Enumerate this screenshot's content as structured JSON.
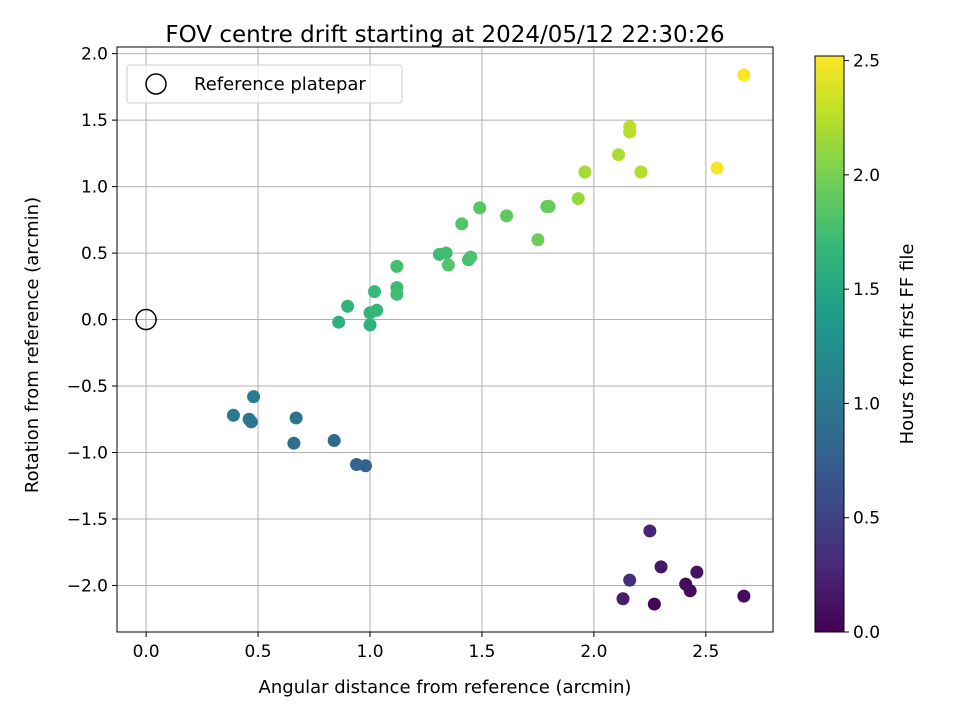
{
  "chart_data": {
    "type": "scatter",
    "title": "FOV centre drift starting at 2024/05/12 22:30:26",
    "xlabel": "Angular distance from reference (arcmin)",
    "ylabel": "Rotation from reference (arcmin)",
    "xlim": [
      -0.13,
      2.8
    ],
    "ylim": [
      -2.35,
      2.05
    ],
    "x_ticks": [
      0.0,
      0.5,
      1.0,
      1.5,
      2.0,
      2.5
    ],
    "x_tick_labels": [
      "0.0",
      "0.5",
      "1.0",
      "1.5",
      "2.0",
      "2.5"
    ],
    "y_ticks": [
      -2.0,
      -1.5,
      -1.0,
      -0.5,
      0.0,
      0.5,
      1.0,
      1.5,
      2.0
    ],
    "y_tick_labels": [
      "−2.0",
      "−1.5",
      "−1.0",
      "−0.5",
      "0.0",
      "0.5",
      "1.0",
      "1.5",
      "2.0"
    ],
    "grid": true,
    "legend": {
      "placement": "upper-left",
      "label": "Reference platepar"
    },
    "reference_point": {
      "x": 0.0,
      "y": 0.0
    },
    "colorbar": {
      "label": "Hours from first FF file",
      "range": [
        0.0,
        2.52
      ],
      "colormap": "viridis",
      "ticks": [
        0.0,
        0.5,
        1.0,
        1.5,
        2.0,
        2.5
      ],
      "tick_labels": [
        "0.0",
        "0.5",
        "1.0",
        "1.5",
        "2.0",
        "2.5"
      ]
    },
    "points": [
      {
        "x": 2.27,
        "y": -2.14,
        "c": 0.02
      },
      {
        "x": 2.43,
        "y": -2.04,
        "c": 0.05
      },
      {
        "x": 2.41,
        "y": -1.99,
        "c": 0.07
      },
      {
        "x": 2.67,
        "y": -2.08,
        "c": 0.08
      },
      {
        "x": 2.46,
        "y": -1.9,
        "c": 0.12
      },
      {
        "x": 2.3,
        "y": -1.86,
        "c": 0.15
      },
      {
        "x": 2.13,
        "y": -2.1,
        "c": 0.2
      },
      {
        "x": 2.25,
        "y": -1.59,
        "c": 0.25
      },
      {
        "x": 2.16,
        "y": -1.96,
        "c": 0.35
      },
      {
        "x": 0.98,
        "y": -1.1,
        "c": 0.78
      },
      {
        "x": 0.94,
        "y": -1.09,
        "c": 0.8
      },
      {
        "x": 0.84,
        "y": -0.91,
        "c": 0.85
      },
      {
        "x": 0.66,
        "y": -0.93,
        "c": 0.88
      },
      {
        "x": 0.67,
        "y": -0.74,
        "c": 0.95
      },
      {
        "x": 0.46,
        "y": -0.75,
        "c": 0.98
      },
      {
        "x": 0.47,
        "y": -0.77,
        "c": 1.0
      },
      {
        "x": 0.39,
        "y": -0.72,
        "c": 1.02
      },
      {
        "x": 0.48,
        "y": -0.58,
        "c": 1.05
      },
      {
        "x": 0.86,
        "y": -0.02,
        "c": 1.6
      },
      {
        "x": 1.0,
        "y": -0.04,
        "c": 1.62
      },
      {
        "x": 0.9,
        "y": 0.1,
        "c": 1.65
      },
      {
        "x": 1.0,
        "y": 0.05,
        "c": 1.66
      },
      {
        "x": 1.03,
        "y": 0.07,
        "c": 1.68
      },
      {
        "x": 1.02,
        "y": 0.21,
        "c": 1.7
      },
      {
        "x": 1.12,
        "y": 0.24,
        "c": 1.72
      },
      {
        "x": 1.12,
        "y": 0.19,
        "c": 1.74
      },
      {
        "x": 1.12,
        "y": 0.4,
        "c": 1.76
      },
      {
        "x": 1.31,
        "y": 0.49,
        "c": 1.72
      },
      {
        "x": 1.34,
        "y": 0.5,
        "c": 1.74
      },
      {
        "x": 1.35,
        "y": 0.41,
        "c": 1.82
      },
      {
        "x": 1.44,
        "y": 0.45,
        "c": 1.77
      },
      {
        "x": 1.45,
        "y": 0.47,
        "c": 1.8
      },
      {
        "x": 1.41,
        "y": 0.72,
        "c": 1.82
      },
      {
        "x": 1.49,
        "y": 0.84,
        "c": 1.85
      },
      {
        "x": 1.61,
        "y": 0.78,
        "c": 1.88
      },
      {
        "x": 1.79,
        "y": 0.85,
        "c": 1.9
      },
      {
        "x": 1.8,
        "y": 0.85,
        "c": 1.92
      },
      {
        "x": 1.75,
        "y": 0.6,
        "c": 1.95
      },
      {
        "x": 1.93,
        "y": 0.91,
        "c": 2.12
      },
      {
        "x": 1.96,
        "y": 1.11,
        "c": 2.18
      },
      {
        "x": 2.11,
        "y": 1.24,
        "c": 2.2
      },
      {
        "x": 2.16,
        "y": 1.41,
        "c": 2.24
      },
      {
        "x": 2.16,
        "y": 1.45,
        "c": 2.26
      },
      {
        "x": 2.21,
        "y": 1.11,
        "c": 2.23
      },
      {
        "x": 2.55,
        "y": 1.14,
        "c": 2.48
      },
      {
        "x": 2.67,
        "y": 1.84,
        "c": 2.52
      }
    ]
  }
}
